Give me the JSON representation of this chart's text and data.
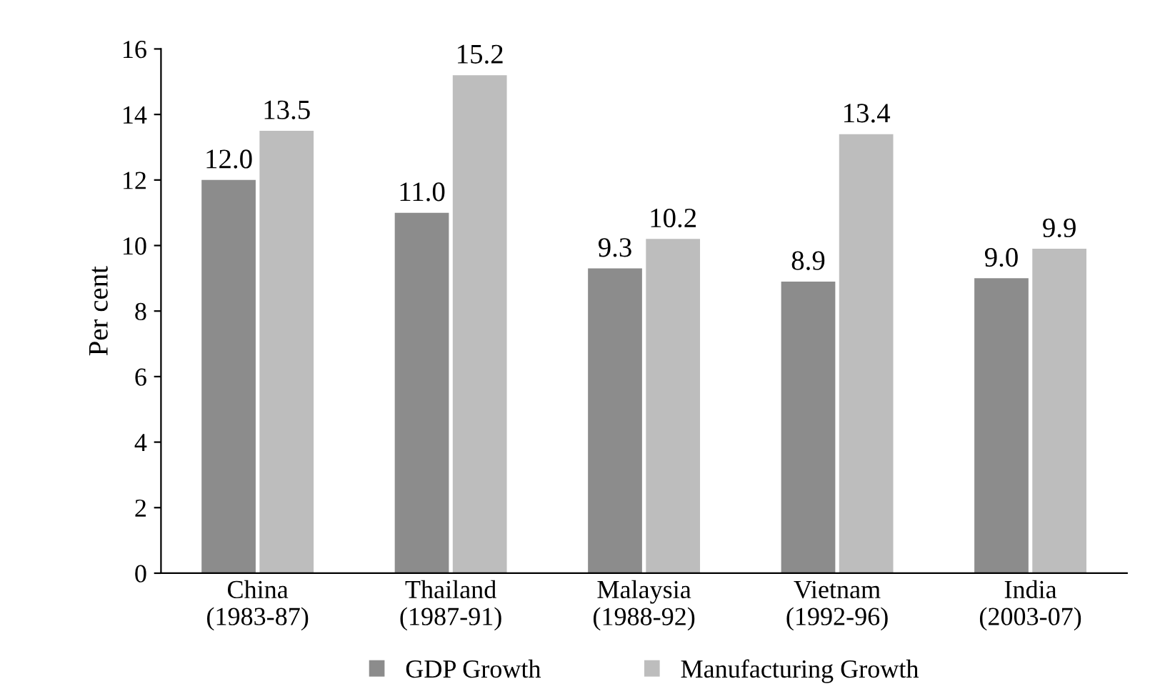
{
  "chart_data": {
    "type": "bar",
    "ylabel": "Per cent",
    "categories": [
      "China\n(1983-87)",
      "Thailand\n(1987-91)",
      "Malaysia\n(1988-92)",
      "Vietnam\n(1992-96)",
      "India\n(2003-07)"
    ],
    "series": [
      {
        "name": "GDP Growth",
        "color": "#8c8c8c",
        "values": [
          12.0,
          11.0,
          9.3,
          8.9,
          9.0
        ],
        "value_labels": [
          "12.0",
          "11.0",
          "9.3",
          "8.9",
          "9.0"
        ]
      },
      {
        "name": "Manufacturing Growth",
        "color": "#bdbdbd",
        "values": [
          13.5,
          15.2,
          10.2,
          13.4,
          9.9
        ],
        "value_labels": [
          "13.5",
          "15.2",
          "10.2",
          "13.4",
          "9.9"
        ]
      }
    ],
    "ylim": [
      0,
      16
    ],
    "yticks": [
      0,
      2,
      4,
      6,
      8,
      10,
      12,
      14,
      16
    ],
    "grid": false,
    "legend": "bottom"
  }
}
